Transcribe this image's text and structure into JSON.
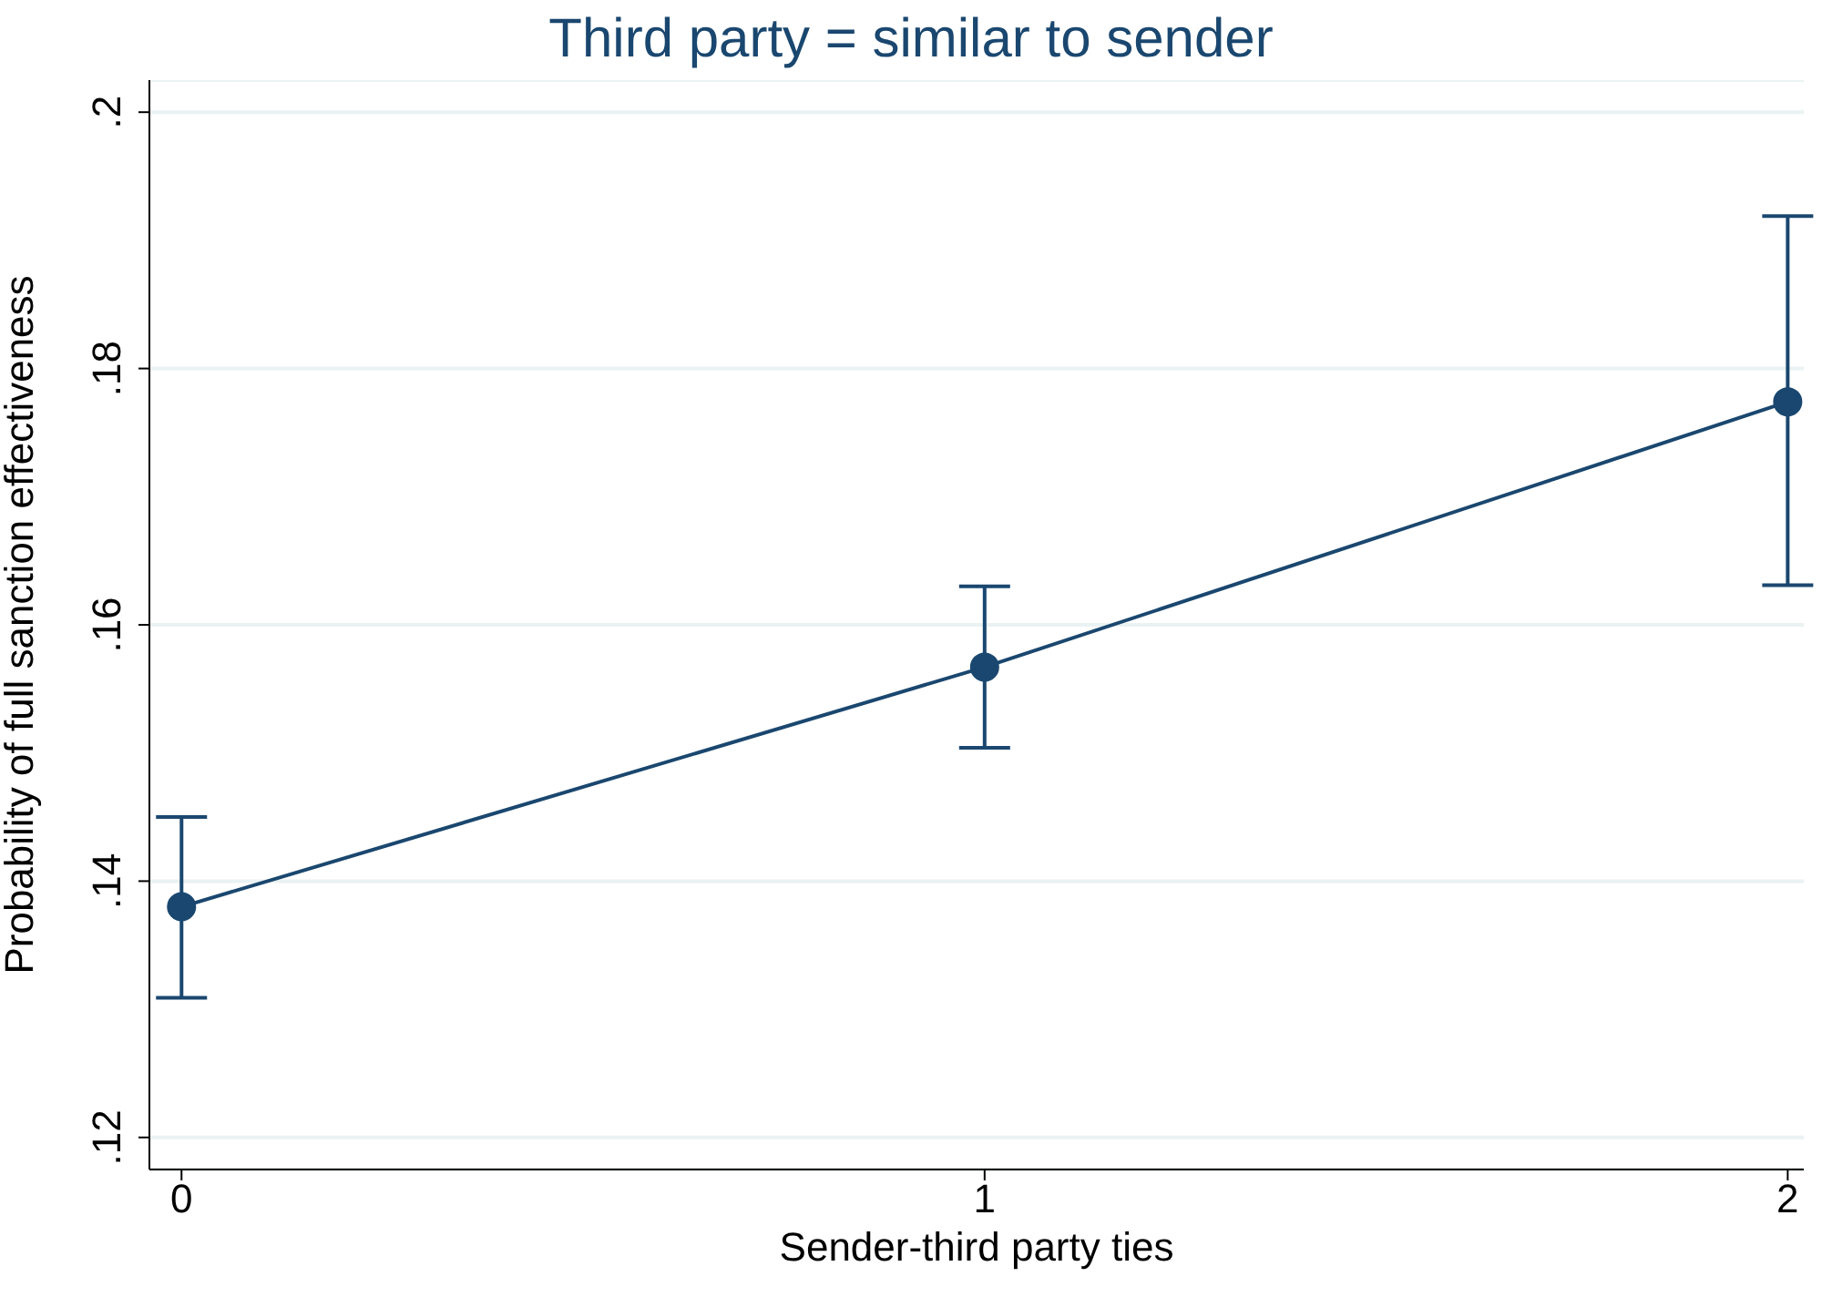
{
  "chart_data": {
    "type": "line",
    "title": "Third party = similar to sender",
    "xlabel": "Sender-third party ties",
    "ylabel": "Probability of full sanction effectiveness",
    "x": [
      0,
      1,
      2
    ],
    "series": [
      {
        "color": "#1a476f",
        "values": [
          0.138,
          0.1567,
          0.1774
        ],
        "errors": [
          [
            0.1309,
            0.145
          ],
          [
            0.1504,
            0.163
          ],
          [
            0.1631,
            0.1919
          ]
        ]
      }
    ],
    "xlim": [
      -0.04,
      2.02
    ],
    "xticks": [
      0,
      1,
      2
    ],
    "ylim": [
      0.1175,
      0.2025
    ],
    "yticks": [
      {
        "value": 0.12,
        "label": ".12"
      },
      {
        "value": 0.14,
        "label": ".14"
      },
      {
        "value": 0.16,
        "label": ".16"
      },
      {
        "value": 0.18,
        "label": ".18"
      },
      {
        "value": 0.2,
        "label": ".2"
      }
    ],
    "grid": "y",
    "marker": "circle",
    "line_style": "solid",
    "legend": false
  }
}
